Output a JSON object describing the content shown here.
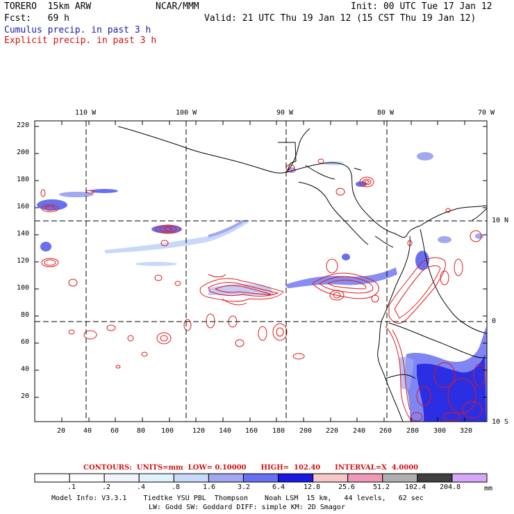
{
  "header": {
    "model": "TORERO  15km ARW",
    "org": "NCAR/MMM",
    "init": "Init: 00 UTC Tue 17 Jan 12",
    "fcst": "Fcst:   69 h",
    "valid": "Valid: 21 UTC Thu 19 Jan 12 (15 CST Thu 19 Jan 12)",
    "line_cumulus": "Cumulus precip. in past 3 h",
    "line_explicit": "Explicit precip. in past 3 h"
  },
  "map": {
    "lon_labels": [
      "110 W",
      "100 W",
      "90 W",
      "80 W",
      "70 W"
    ],
    "lat_labels": [
      "10 N",
      "0",
      "10 S"
    ],
    "y_ticks": [
      "220",
      "200",
      "180",
      "160",
      "140",
      "120",
      "100",
      "80",
      "60",
      "40",
      "20"
    ],
    "x_ticks": [
      "20",
      "40",
      "60",
      "80",
      "100",
      "120",
      "140",
      "160",
      "180",
      "200",
      "220",
      "240",
      "260",
      "280",
      "300",
      "320"
    ],
    "colors": {
      "cumulus_light": "#c8d8f8",
      "cumulus_mid": "#7080f0",
      "cumulus_dark": "#1818e0",
      "explicit": "#e01818",
      "coast": "#000000"
    }
  },
  "contours": {
    "label": "CONTOURS:  UNITS=mm  LOW= 0.10000      HIGH=  102.40      INTERVAL=X  4.0000"
  },
  "colorbar": {
    "labels": [
      ".1",
      ".2",
      ".4",
      ".8",
      "1.6",
      "3.2",
      "6.4",
      "12.8",
      "25.6",
      "51.2",
      "102.4",
      "204.8"
    ],
    "unit": "mm",
    "colors": [
      "#ffffff",
      "#ffffff",
      "#f0f4ff",
      "#dff3fb",
      "#c8d8f8",
      "#a0a8f0",
      "#6870f0",
      "#1818e0",
      "#f8c8c8",
      "#f098b8",
      "#b0b0b0",
      "#404040",
      "#d8a8f8"
    ]
  },
  "footer": {
    "line1": "Model Info: V3.3.1    Tiedtke YSU PBL  Thompson    Noah LSM  15 km,   44 levels,   62 sec",
    "line2": "LW: Godd SW: Goddard DIFF: simple KM: 2D Smagor"
  }
}
